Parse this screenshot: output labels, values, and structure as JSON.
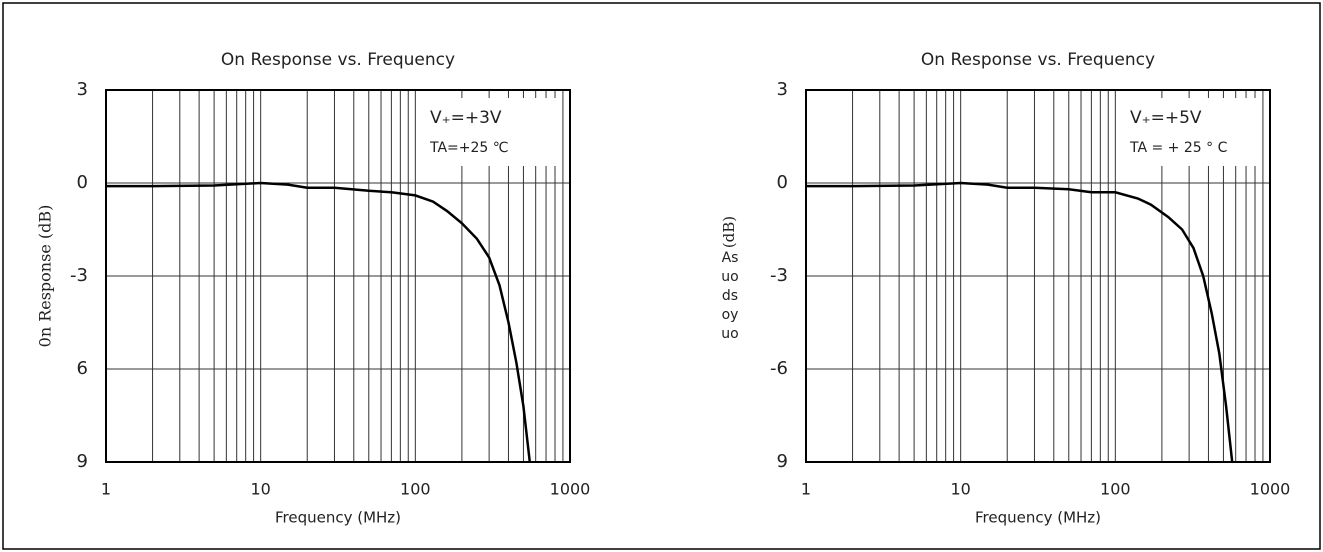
{
  "chart_data": [
    {
      "type": "line",
      "title": "On Response vs. Frequency",
      "xlabel": "Frequency (MHz)",
      "ylabel": "0n Response (dB)",
      "xscale": "log",
      "xlim": [
        1,
        1000
      ],
      "xticks": [
        1,
        10,
        100,
        1000
      ],
      "xgrid_minor": [
        2,
        3,
        4,
        5,
        6,
        7,
        8,
        9,
        20,
        30,
        40,
        50,
        60,
        70,
        80,
        90,
        200,
        300,
        400,
        500,
        600,
        700,
        800,
        900
      ],
      "ylim": [
        -9,
        3
      ],
      "yticks": [
        3,
        0,
        -3,
        {
          "value": -6,
          "label": "6"
        },
        {
          "value": -9,
          "label": "9"
        }
      ],
      "grid": true,
      "annotations": [
        "V₊=+3V",
        "TA=+25 ℃"
      ],
      "series": [
        {
          "name": "On Response",
          "color": "#000000",
          "x": [
            1,
            2,
            5,
            10,
            15,
            20,
            30,
            50,
            70,
            100,
            130,
            160,
            200,
            250,
            300,
            350,
            400,
            450,
            500,
            550
          ],
          "values": [
            -0.1,
            -0.1,
            -0.08,
            0,
            -0.05,
            -0.15,
            -0.15,
            -0.25,
            -0.3,
            -0.4,
            -0.6,
            -0.9,
            -1.3,
            -1.8,
            -2.4,
            -3.3,
            -4.5,
            -5.8,
            -7.2,
            -9
          ]
        }
      ]
    },
    {
      "type": "line",
      "title": "On Response vs. Frequency",
      "xlabel": "Frequency (MHz)",
      "ylabel": "(dB)",
      "ylabel_lines": [
        "As",
        "uo",
        "ds",
        "oy",
        "uo"
      ],
      "xscale": "log",
      "xlim": [
        1,
        1000
      ],
      "xticks": [
        1,
        10,
        100,
        1000
      ],
      "xgrid_minor": [
        2,
        3,
        4,
        5,
        6,
        7,
        8,
        9,
        20,
        30,
        40,
        50,
        60,
        70,
        80,
        90,
        200,
        300,
        400,
        500,
        600,
        700,
        800,
        900
      ],
      "ylim": [
        -9,
        3
      ],
      "yticks": [
        3,
        0,
        -3,
        -6,
        {
          "value": -9,
          "label": "9"
        }
      ],
      "grid": true,
      "annotations": [
        "V₊=+5V",
        "TA = + 25 ° C"
      ],
      "series": [
        {
          "name": "On Response",
          "color": "#000000",
          "x": [
            1,
            2,
            5,
            10,
            15,
            20,
            30,
            50,
            70,
            100,
            140,
            170,
            220,
            270,
            320,
            370,
            420,
            470,
            520,
            570
          ],
          "values": [
            -0.1,
            -0.1,
            -0.08,
            0,
            -0.05,
            -0.15,
            -0.15,
            -0.2,
            -0.3,
            -0.3,
            -0.5,
            -0.7,
            -1.1,
            -1.5,
            -2.1,
            -3,
            -4.2,
            -5.5,
            -7.2,
            -9
          ]
        }
      ]
    }
  ]
}
